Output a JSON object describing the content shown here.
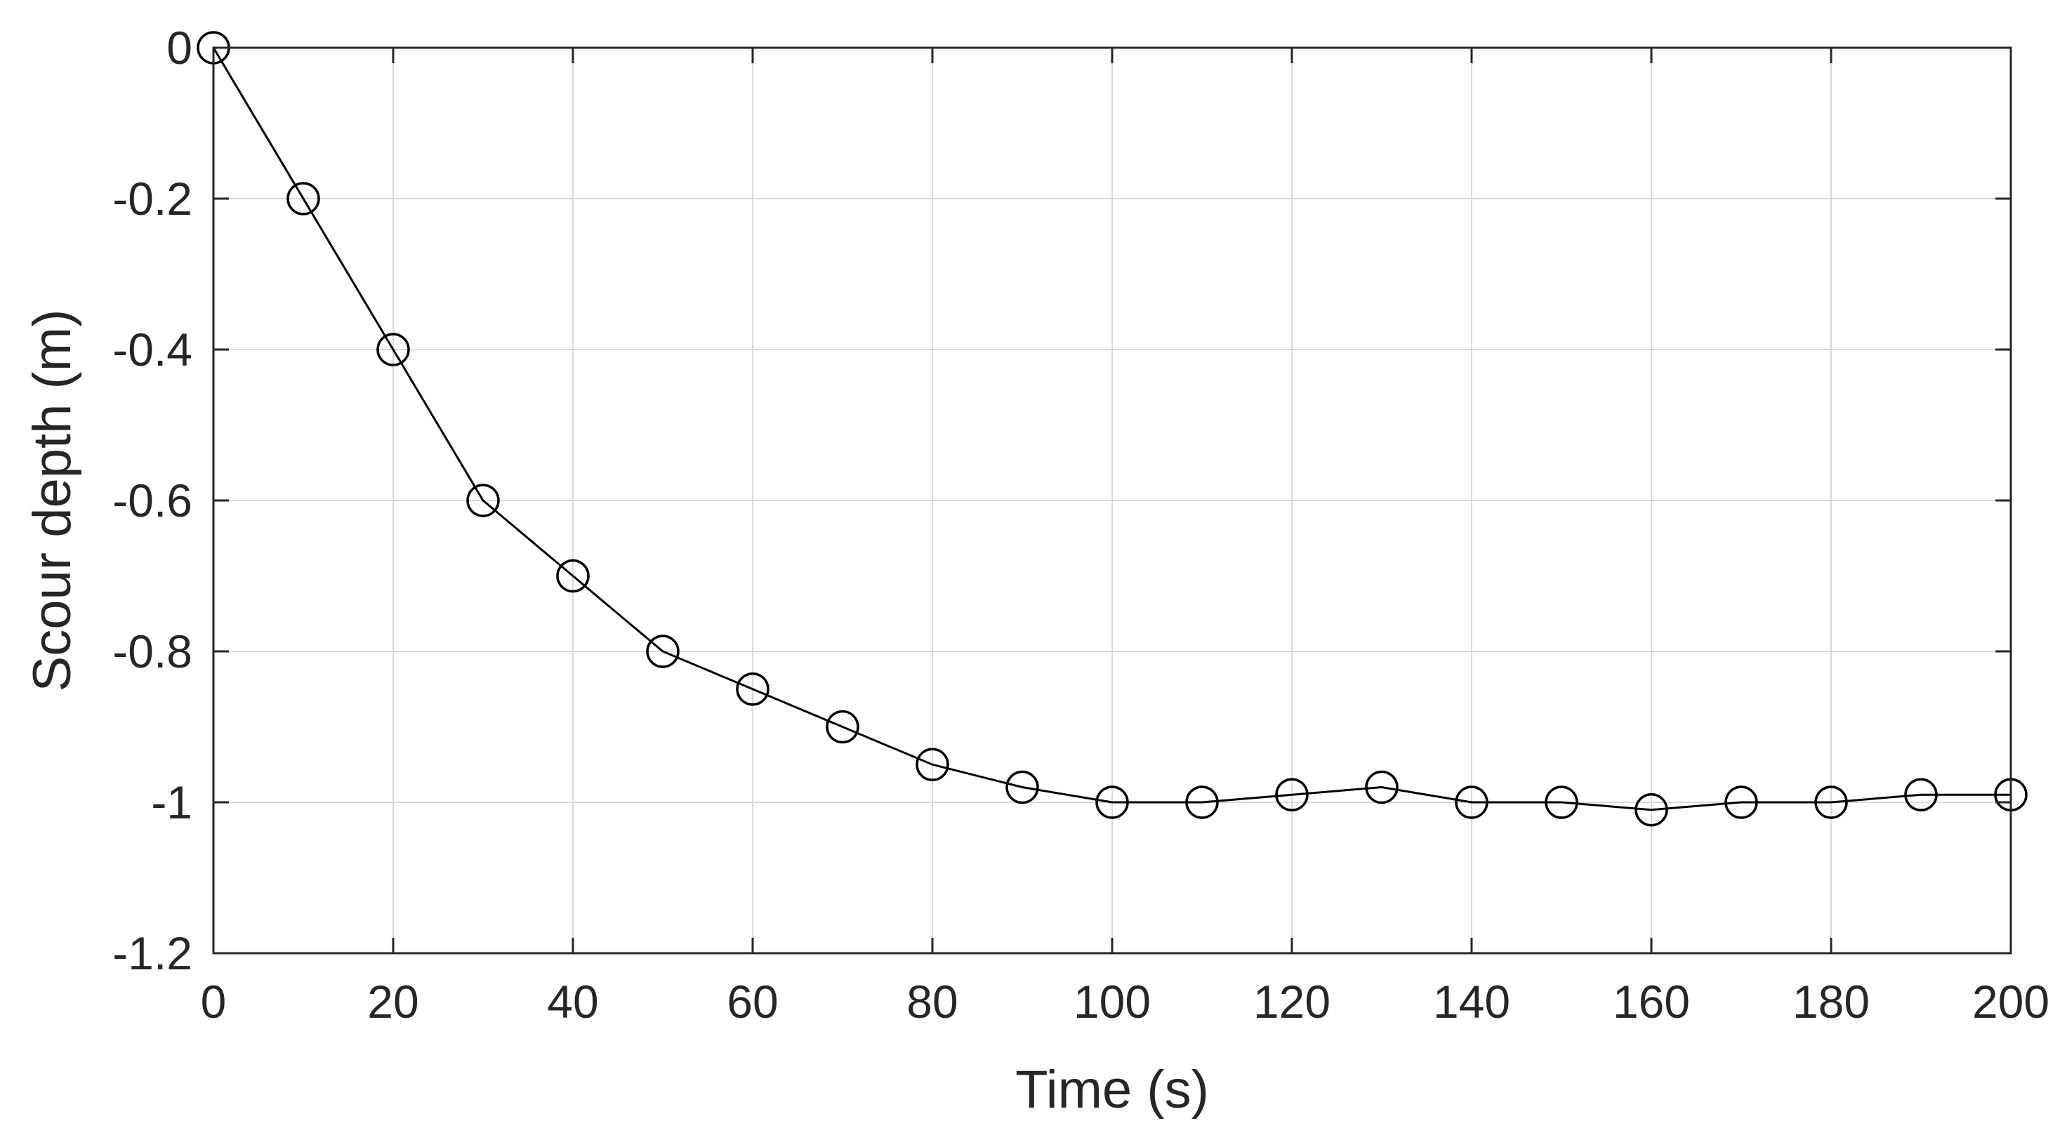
{
  "chart_data": {
    "type": "line",
    "title": "",
    "xlabel": "Time (s)",
    "ylabel": "Scour depth (m)",
    "xlim": [
      0,
      200
    ],
    "ylim": [
      -1.2,
      0
    ],
    "grid": true,
    "legend": "none",
    "x_ticks": [
      0,
      20,
      40,
      60,
      80,
      100,
      120,
      140,
      160,
      180,
      200
    ],
    "x_tick_labels": [
      "0",
      "20",
      "40",
      "60",
      "80",
      "100",
      "120",
      "140",
      "160",
      "180",
      "200"
    ],
    "y_ticks": [
      0,
      -0.2,
      -0.4,
      -0.6,
      -0.8,
      -1,
      -1.2
    ],
    "y_tick_labels": [
      "0",
      "-0.2",
      "-0.4",
      "-0.6",
      "-0.8",
      "-1",
      "-1.2"
    ],
    "series": [
      {
        "name": "Scour depth",
        "color": "#000000",
        "marker": "open-circle",
        "x": [
          0,
          10,
          20,
          30,
          40,
          50,
          60,
          70,
          80,
          90,
          100,
          110,
          120,
          130,
          140,
          150,
          160,
          170,
          180,
          190,
          200
        ],
        "values": [
          0,
          -0.2,
          -0.4,
          -0.6,
          -0.7,
          -0.8,
          -0.85,
          -0.9,
          -0.95,
          -0.98,
          -1.0,
          -1.0,
          -0.99,
          -0.98,
          -1.0,
          -1.0,
          -1.01,
          -1.0,
          -1.0,
          -0.99,
          -0.99
        ]
      }
    ]
  }
}
